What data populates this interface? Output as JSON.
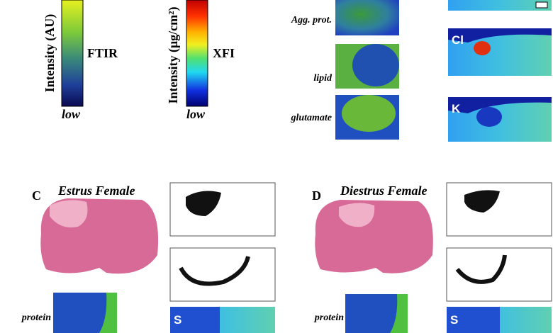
{
  "colorbars": [
    {
      "axis_label": "Intensity (AU)",
      "name": "FTIR",
      "low": "low"
    },
    {
      "axis_label": "Intensity (μg/cm²)",
      "name": "XFI",
      "low": "low"
    }
  ],
  "ftir_maps": [
    "Agg. prot.",
    "lipid",
    "glutamate"
  ],
  "xfi_maps": [
    "Cl",
    "K"
  ],
  "panels": [
    {
      "letter": "C",
      "title": "Estrus Female",
      "ftir_label": "protein",
      "xfi_label": "S"
    },
    {
      "letter": "D",
      "title": "Diestrus Female",
      "ftir_label": "protein",
      "xfi_label": "S"
    }
  ]
}
